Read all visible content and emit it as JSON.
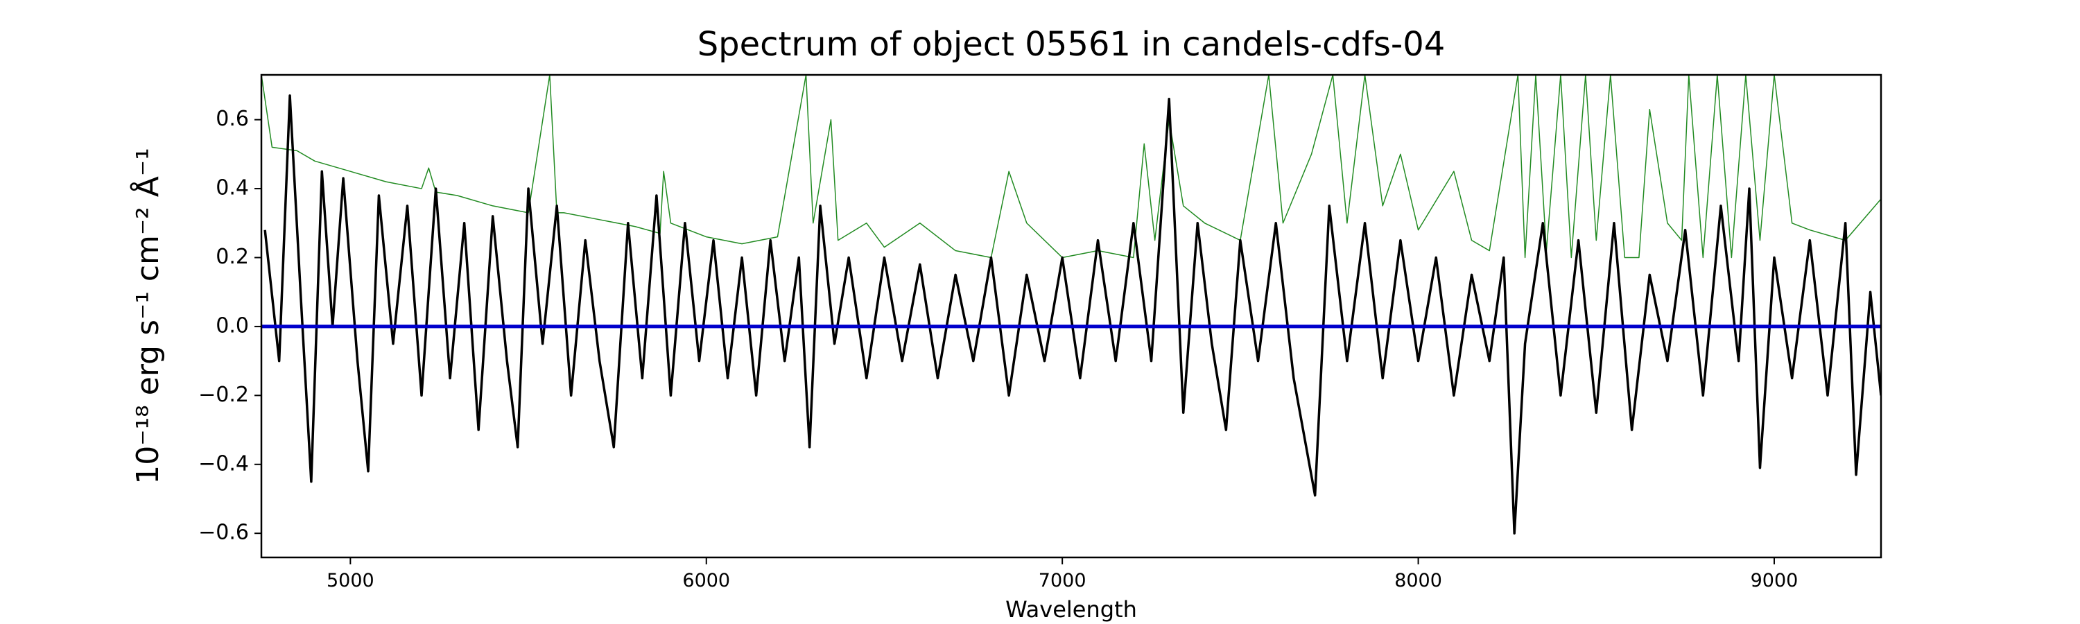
{
  "chart_data": {
    "type": "line",
    "title": "Spectrum of object 05561 in candels-cdfs-04",
    "xlabel": "Wavelength",
    "ylabel": "10⁻¹⁸ erg s⁻¹ cm⁻² Å⁻¹",
    "xlim": [
      4750,
      9300
    ],
    "ylim": [
      -0.67,
      0.73
    ],
    "xticks": [
      5000,
      6000,
      7000,
      8000,
      9000
    ],
    "yticks": [
      {
        "value": -0.6,
        "label": "−0.6"
      },
      {
        "value": -0.4,
        "label": "−0.4"
      },
      {
        "value": -0.2,
        "label": "−0.2"
      },
      {
        "value": 0,
        "label": "0.0"
      },
      0.2,
      0.4,
      0.6
    ],
    "series": [
      {
        "color": "#228b22",
        "width": 1.5,
        "x": [
          4750,
          4780,
          4850,
          4900,
          5000,
          5100,
          5200,
          5220,
          5240,
          5300,
          5400,
          5500,
          5560,
          5580,
          5600,
          5700,
          5800,
          5870,
          5880,
          5900,
          6000,
          6100,
          6200,
          6280,
          6300,
          6350,
          6370,
          6450,
          6500,
          6600,
          6700,
          6800,
          6850,
          6900,
          7000,
          7100,
          7200,
          7230,
          7260,
          7300,
          7340,
          7400,
          7500,
          7580,
          7620,
          7700,
          7760,
          7800,
          7850,
          7900,
          7950,
          8000,
          8100,
          8150,
          8200,
          8280,
          8300,
          8330,
          8360,
          8400,
          8430,
          8470,
          8500,
          8540,
          8580,
          8620,
          8650,
          8700,
          8740,
          8760,
          8800,
          8840,
          8880,
          8920,
          8960,
          9000,
          9050,
          9100,
          9200,
          9300
        ],
        "values": [
          0.73,
          0.52,
          0.51,
          0.48,
          0.45,
          0.42,
          0.4,
          0.46,
          0.39,
          0.38,
          0.35,
          0.33,
          0.73,
          0.33,
          0.33,
          0.31,
          0.29,
          0.27,
          0.45,
          0.3,
          0.26,
          0.24,
          0.26,
          0.73,
          0.3,
          0.6,
          0.25,
          0.3,
          0.23,
          0.3,
          0.22,
          0.2,
          0.45,
          0.3,
          0.2,
          0.22,
          0.2,
          0.53,
          0.25,
          0.6,
          0.35,
          0.3,
          0.25,
          0.73,
          0.3,
          0.5,
          0.73,
          0.3,
          0.73,
          0.35,
          0.5,
          0.28,
          0.45,
          0.25,
          0.22,
          0.73,
          0.2,
          0.73,
          0.22,
          0.73,
          0.2,
          0.73,
          0.25,
          0.73,
          0.2,
          0.2,
          0.63,
          0.3,
          0.25,
          0.73,
          0.2,
          0.73,
          0.2,
          0.73,
          0.25,
          0.73,
          0.3,
          0.28,
          0.25,
          0.37
        ]
      },
      {
        "color": "#000000",
        "width": 3.5,
        "x": [
          4760,
          4800,
          4830,
          4860,
          4890,
          4920,
          4950,
          4980,
          5020,
          5050,
          5080,
          5120,
          5160,
          5200,
          5240,
          5280,
          5320,
          5360,
          5400,
          5440,
          5470,
          5500,
          5540,
          5580,
          5620,
          5660,
          5700,
          5740,
          5780,
          5820,
          5860,
          5900,
          5940,
          5980,
          6020,
          6060,
          6100,
          6140,
          6180,
          6220,
          6260,
          6290,
          6320,
          6360,
          6400,
          6450,
          6500,
          6550,
          6600,
          6650,
          6700,
          6750,
          6800,
          6850,
          6900,
          6950,
          7000,
          7050,
          7100,
          7150,
          7200,
          7250,
          7300,
          7340,
          7380,
          7420,
          7460,
          7500,
          7550,
          7600,
          7650,
          7710,
          7750,
          7800,
          7850,
          7900,
          7950,
          8000,
          8050,
          8100,
          8150,
          8200,
          8240,
          8270,
          8300,
          8350,
          8400,
          8450,
          8500,
          8550,
          8600,
          8650,
          8700,
          8750,
          8800,
          8850,
          8900,
          8930,
          8960,
          9000,
          9050,
          9100,
          9150,
          9200,
          9230,
          9270,
          9300
        ],
        "values": [
          0.28,
          -0.1,
          0.67,
          0.1,
          -0.45,
          0.45,
          0.0,
          0.43,
          -0.1,
          -0.42,
          0.38,
          -0.05,
          0.35,
          -0.2,
          0.4,
          -0.15,
          0.3,
          -0.3,
          0.32,
          -0.1,
          -0.35,
          0.4,
          -0.05,
          0.35,
          -0.2,
          0.25,
          -0.1,
          -0.35,
          0.3,
          -0.15,
          0.38,
          -0.2,
          0.3,
          -0.1,
          0.25,
          -0.15,
          0.2,
          -0.2,
          0.25,
          -0.1,
          0.2,
          -0.35,
          0.35,
          -0.05,
          0.2,
          -0.15,
          0.2,
          -0.1,
          0.18,
          -0.15,
          0.15,
          -0.1,
          0.2,
          -0.2,
          0.15,
          -0.1,
          0.2,
          -0.15,
          0.25,
          -0.1,
          0.3,
          -0.1,
          0.66,
          -0.25,
          0.3,
          -0.05,
          -0.3,
          0.25,
          -0.1,
          0.3,
          -0.15,
          -0.49,
          0.35,
          -0.1,
          0.3,
          -0.15,
          0.25,
          -0.1,
          0.2,
          -0.2,
          0.15,
          -0.1,
          0.2,
          -0.6,
          -0.05,
          0.3,
          -0.2,
          0.25,
          -0.25,
          0.3,
          -0.3,
          0.15,
          -0.1,
          0.28,
          -0.2,
          0.35,
          -0.1,
          0.4,
          -0.41,
          0.2,
          -0.15,
          0.25,
          -0.2,
          0.3,
          -0.43,
          0.1,
          -0.2
        ]
      },
      {
        "color": "#0000cc",
        "width": 5,
        "x": [
          4750,
          9300
        ],
        "values": [
          0,
          0
        ]
      }
    ]
  }
}
